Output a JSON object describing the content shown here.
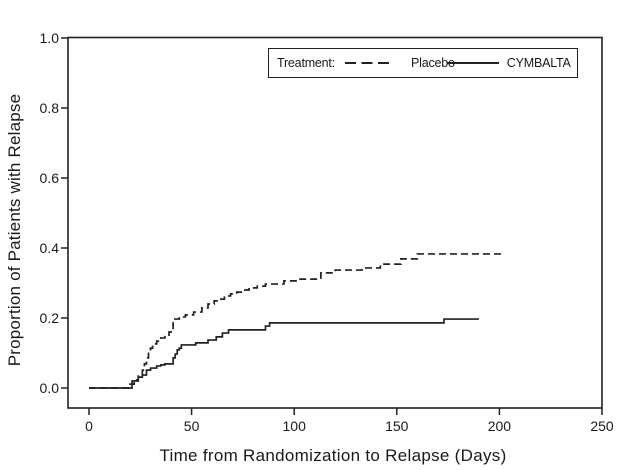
{
  "figure": {
    "background": "#ffffff",
    "line_color": "#222222",
    "text_color": "#1a1a1a"
  },
  "chart_data": {
    "type": "line",
    "subtype": "kaplan-meier-step",
    "title": "",
    "xlabel": "Time from Randomization to Relapse (Days)",
    "ylabel": "Proportion of Patients with Relapse",
    "xlim": [
      0,
      250
    ],
    "ylim": [
      0.0,
      1.0
    ],
    "xticks": [
      0,
      50,
      100,
      150,
      200,
      250
    ],
    "ytick_labels": [
      "0.0",
      "0.2",
      "0.4",
      "0.6",
      "0.8",
      "1.0"
    ],
    "grid": false,
    "legend": {
      "title": "Treatment:",
      "position": "top-right",
      "entries": [
        {
          "label": "Placebo",
          "line_style": "dashed"
        },
        {
          "label": "CYMBALTA",
          "line_style": "solid"
        }
      ]
    },
    "series": [
      {
        "name": "Placebo",
        "line_style": "dashed",
        "points": [
          [
            0,
            0
          ],
          [
            20,
            0.011
          ],
          [
            22,
            0.023
          ],
          [
            24,
            0.034
          ],
          [
            26,
            0.051
          ],
          [
            27,
            0.069
          ],
          [
            28,
            0.086
          ],
          [
            29,
            0.103
          ],
          [
            30,
            0.114
          ],
          [
            31,
            0.126
          ],
          [
            33,
            0.134
          ],
          [
            35,
            0.143
          ],
          [
            37,
            0.151
          ],
          [
            39,
            0.16
          ],
          [
            41,
            0.197
          ],
          [
            44,
            0.203
          ],
          [
            47,
            0.209
          ],
          [
            51,
            0.217
          ],
          [
            55,
            0.229
          ],
          [
            58,
            0.24
          ],
          [
            61,
            0.249
          ],
          [
            63,
            0.254
          ],
          [
            66,
            0.263
          ],
          [
            69,
            0.269
          ],
          [
            72,
            0.274
          ],
          [
            75,
            0.28
          ],
          [
            78,
            0.286
          ],
          [
            82,
            0.291
          ],
          [
            86,
            0.297
          ],
          [
            95,
            0.306
          ],
          [
            102,
            0.311
          ],
          [
            113,
            0.329
          ],
          [
            120,
            0.337
          ],
          [
            133,
            0.343
          ],
          [
            142,
            0.354
          ],
          [
            152,
            0.369
          ],
          [
            160,
            0.383
          ],
          [
            202,
            0.383
          ]
        ]
      },
      {
        "name": "CYMBALTA",
        "line_style": "solid",
        "points": [
          [
            0,
            0
          ],
          [
            21,
            0.02
          ],
          [
            24,
            0.031
          ],
          [
            26,
            0.037
          ],
          [
            28,
            0.051
          ],
          [
            30,
            0.057
          ],
          [
            33,
            0.063
          ],
          [
            35,
            0.066
          ],
          [
            37,
            0.069
          ],
          [
            41,
            0.086
          ],
          [
            42,
            0.097
          ],
          [
            43,
            0.109
          ],
          [
            44,
            0.114
          ],
          [
            45,
            0.123
          ],
          [
            52,
            0.129
          ],
          [
            58,
            0.137
          ],
          [
            62,
            0.146
          ],
          [
            65,
            0.157
          ],
          [
            68,
            0.166
          ],
          [
            86,
            0.177
          ],
          [
            88,
            0.186
          ],
          [
            173,
            0.197
          ],
          [
            190,
            0.197
          ]
        ]
      }
    ]
  }
}
